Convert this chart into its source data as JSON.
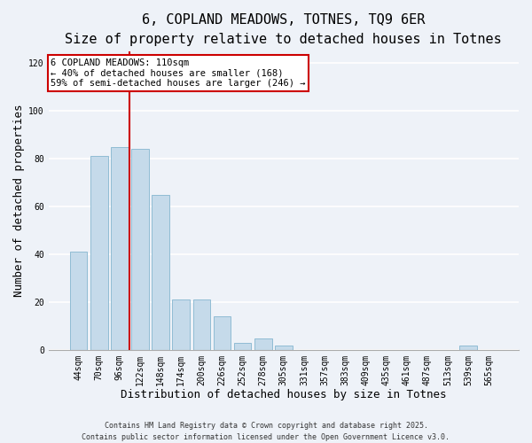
{
  "title": "6, COPLAND MEADOWS, TOTNES, TQ9 6ER",
  "subtitle": "Size of property relative to detached houses in Totnes",
  "xlabel": "Distribution of detached houses by size in Totnes",
  "ylabel": "Number of detached properties",
  "categories": [
    "44sqm",
    "70sqm",
    "96sqm",
    "122sqm",
    "148sqm",
    "174sqm",
    "200sqm",
    "226sqm",
    "252sqm",
    "278sqm",
    "305sqm",
    "331sqm",
    "357sqm",
    "383sqm",
    "409sqm",
    "435sqm",
    "461sqm",
    "487sqm",
    "513sqm",
    "539sqm",
    "565sqm"
  ],
  "values": [
    41,
    81,
    85,
    84,
    65,
    21,
    21,
    14,
    3,
    5,
    2,
    0,
    0,
    0,
    0,
    0,
    0,
    0,
    0,
    2,
    0
  ],
  "bar_color": "#c5daea",
  "bar_edge_color": "#90bcd4",
  "vline_x": 2.5,
  "vline_color": "#cc0000",
  "annotation_title": "6 COPLAND MEADOWS: 110sqm",
  "annotation_line2": "← 40% of detached houses are smaller (168)",
  "annotation_line3": "59% of semi-detached houses are larger (246) →",
  "annotation_box_color": "#ffffff",
  "annotation_box_edge": "#cc0000",
  "ylim": [
    0,
    125
  ],
  "yticks": [
    0,
    20,
    40,
    60,
    80,
    100,
    120
  ],
  "footer1": "Contains HM Land Registry data © Crown copyright and database right 2025.",
  "footer2": "Contains public sector information licensed under the Open Government Licence v3.0.",
  "background_color": "#eef2f8",
  "title_fontsize": 11,
  "subtitle_fontsize": 9.5,
  "tick_fontsize": 7,
  "axis_label_fontsize": 9,
  "annotation_fontsize": 7.5,
  "footer_fontsize": 6
}
